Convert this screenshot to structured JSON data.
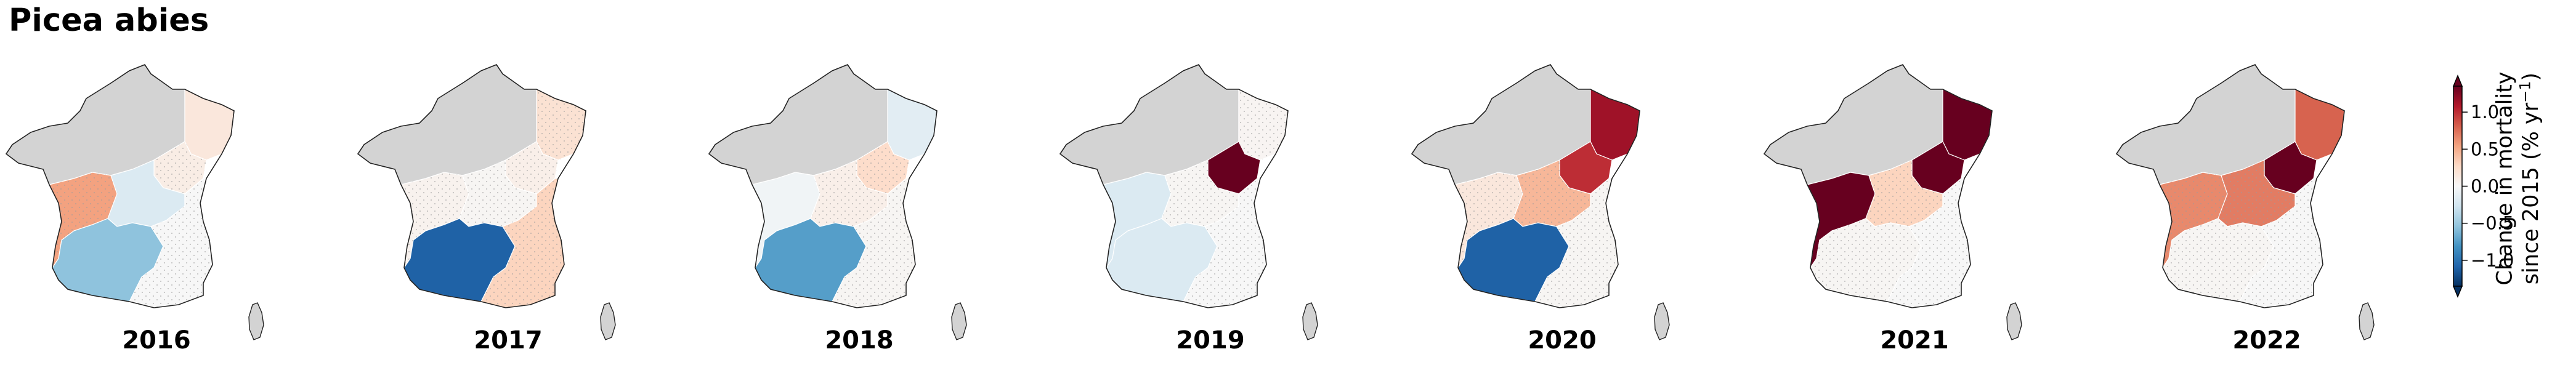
{
  "title": "Picea abies",
  "colorbar": {
    "label_line1": "Change in mortality",
    "label_line2_main": "since 2015 (% yr",
    "label_line2_sup": "−1",
    "label_line2_end": ")",
    "range": [
      -1.35,
      1.35
    ],
    "ticks": [
      {
        "value": 1.0,
        "label": "1.0"
      },
      {
        "value": 0.5,
        "label": "0.5"
      },
      {
        "value": 0.0,
        "label": "0.0"
      },
      {
        "value": -0.5,
        "label": "−0.5"
      },
      {
        "value": -1.0,
        "label": "−1.0"
      }
    ],
    "extend": "both",
    "colormap": "RdBu_r"
  },
  "no_data_color": "#d3d3d3",
  "years": [
    {
      "year": "2016",
      "regions": {
        "NE": 0.15,
        "CE": 0.1,
        "SW": 0.55,
        "SO": -0.55,
        "CA": -0.2,
        "SE": 0.0
      },
      "hatched": [
        "CE",
        "SW",
        "SE"
      ]
    },
    {
      "year": "2017",
      "regions": {
        "NE": 0.2,
        "CE": 0.08,
        "SW": 0.05,
        "SO": -1.1,
        "CA": 0.02,
        "SE": 0.3
      },
      "hatched": [
        "NE",
        "CE",
        "SW",
        "CA",
        "SE"
      ]
    },
    {
      "year": "2018",
      "regions": {
        "NE": -0.15,
        "CE": 0.25,
        "SW": -0.05,
        "SO": -0.75,
        "CA": 0.08,
        "SE": 0.02
      },
      "hatched": [
        "CE",
        "CA",
        "SE"
      ]
    },
    {
      "year": "2019",
      "regions": {
        "NE": 0.03,
        "CE": 1.35,
        "SW": -0.2,
        "SO": -0.2,
        "CA": 0.02,
        "SE": 0.0
      },
      "hatched": [
        "NE",
        "CA",
        "SE"
      ]
    },
    {
      "year": "2020",
      "regions": {
        "NE": 1.15,
        "CE": 1.0,
        "SW": 0.15,
        "SO": -1.1,
        "CA": 0.45,
        "SE": 0.02
      },
      "hatched": [
        "SW",
        "CA",
        "SE"
      ]
    },
    {
      "year": "2021",
      "regions": {
        "NE": 1.35,
        "CE": 1.35,
        "SW": 1.35,
        "SO": 0.02,
        "CA": 0.3,
        "SE": 0.0
      },
      "hatched": [
        "SO",
        "CA",
        "SE"
      ]
    },
    {
      "year": "2022",
      "regions": {
        "NE": 0.8,
        "CE": 1.35,
        "SW": 0.65,
        "SO": 0.02,
        "CA": 0.7,
        "SE": 0.0
      },
      "hatched": [
        "SW",
        "SO",
        "CA",
        "SE"
      ]
    }
  ]
}
